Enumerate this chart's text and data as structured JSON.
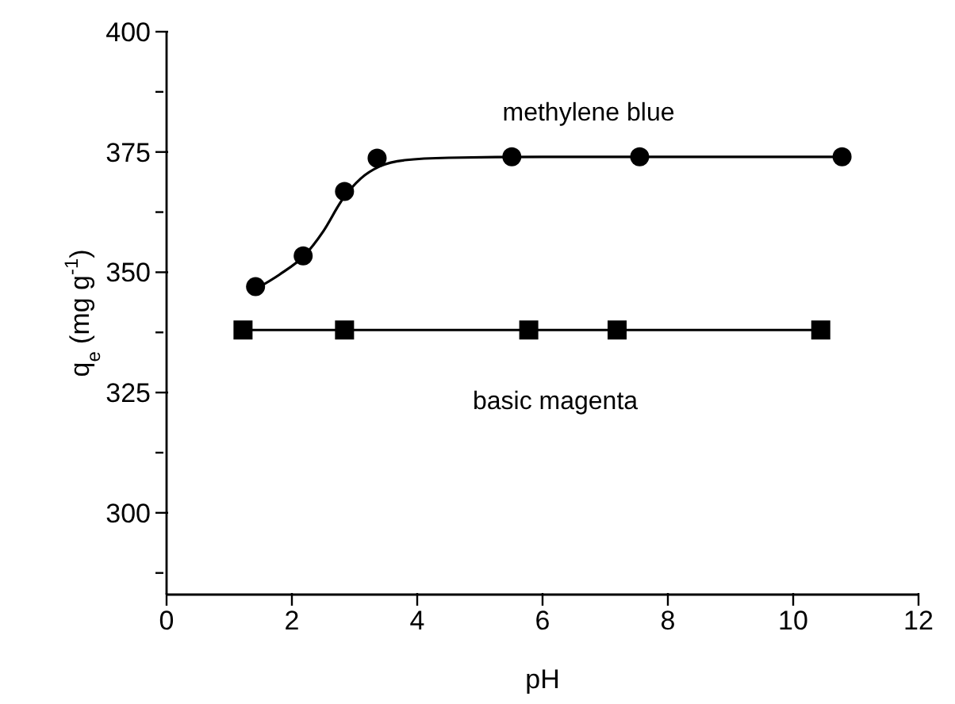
{
  "chart_data": {
    "type": "line",
    "xlabel": "pH",
    "ylabel": "q$_{e}$ (mg g$^{-1}$)",
    "xlim": [
      0,
      12
    ],
    "xticks": [
      0,
      2,
      4,
      6,
      8,
      10,
      12
    ],
    "ylim": [
      283,
      400
    ],
    "yticks": [
      {
        "value": 287.5,
        "label": null
      },
      300,
      {
        "value": 312.5,
        "label": null
      },
      325,
      {
        "value": 337.5,
        "label": null
      },
      350,
      {
        "value": 362.5,
        "label": null
      },
      375,
      {
        "value": 387.5,
        "label": null
      },
      400
    ],
    "grid": false,
    "legend": false,
    "series": [
      {
        "type": "scatter",
        "marker": "circle",
        "color": "#000000",
        "x": [
          1.42,
          2.18,
          2.84,
          3.36,
          5.51,
          7.55,
          10.78
        ],
        "values": [
          347,
          353.4,
          366.8,
          373.7,
          374,
          374,
          374
        ]
      },
      {
        "marker": "none",
        "color": "#000000",
        "x": [
          1.42,
          1.8,
          2.2,
          2.5,
          2.8,
          3.1,
          3.4,
          3.8,
          4.5,
          6,
          8,
          10.78
        ],
        "values": [
          346.5,
          349.5,
          353.5,
          358.5,
          365,
          369.5,
          372,
          373.3,
          373.8,
          374,
          374,
          374
        ]
      },
      {
        "marker": "square",
        "color": "#000000",
        "x": [
          1.22,
          2.84,
          5.78,
          7.19,
          10.44
        ],
        "values": [
          338,
          338,
          338,
          338,
          338
        ]
      }
    ],
    "annotations": [
      "methylene blue",
      "basic magenta"
    ]
  }
}
